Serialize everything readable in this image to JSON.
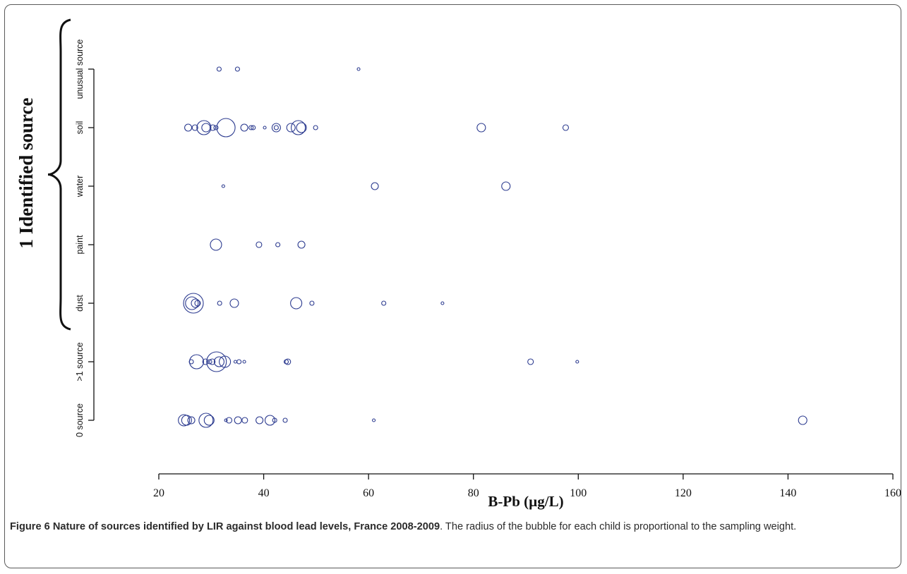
{
  "chart_data": {
    "type": "scatter",
    "title": "",
    "xlabel": "B-Pb (µg/L)",
    "ylabel": "",
    "xlim": [
      20,
      160
    ],
    "xticks": [
      20,
      40,
      60,
      80,
      100,
      120,
      140,
      160
    ],
    "categories": [
      "0 source",
      ">1 source",
      "dust",
      "paint",
      "water",
      "soil",
      "unusual source"
    ],
    "bracket_label": "1 Identified source",
    "bracket_covers": [
      "dust",
      "paint",
      "water",
      "soil",
      "unusual source"
    ],
    "marker": "open-circle",
    "marker_color": "#2b3a8f",
    "size_encoding": "radius proportional to sampling weight",
    "series": [
      {
        "category": "0 source",
        "points": [
          {
            "x": 24.8,
            "r": 8
          },
          {
            "x": 25.3,
            "r": 7
          },
          {
            "x": 26.2,
            "r": 5
          },
          {
            "x": 29.0,
            "r": 10
          },
          {
            "x": 29.6,
            "r": 7
          },
          {
            "x": 32.8,
            "r": 2
          },
          {
            "x": 33.4,
            "r": 4
          },
          {
            "x": 35.1,
            "r": 5
          },
          {
            "x": 36.4,
            "r": 4
          },
          {
            "x": 39.2,
            "r": 5
          },
          {
            "x": 41.2,
            "r": 7
          },
          {
            "x": 42.1,
            "r": 3
          },
          {
            "x": 44.1,
            "r": 3
          },
          {
            "x": 61.0,
            "r": 2
          },
          {
            "x": 142.8,
            "r": 6
          }
        ]
      },
      {
        "category": ">1 source",
        "points": [
          {
            "x": 26.2,
            "r": 3
          },
          {
            "x": 27.2,
            "r": 10
          },
          {
            "x": 28.9,
            "r": 4
          },
          {
            "x": 29.7,
            "r": 3
          },
          {
            "x": 30.2,
            "r": 4
          },
          {
            "x": 31.0,
            "r": 14
          },
          {
            "x": 31.5,
            "r": 7
          },
          {
            "x": 32.6,
            "r": 8
          },
          {
            "x": 34.6,
            "r": 2
          },
          {
            "x": 35.3,
            "r": 3
          },
          {
            "x": 36.3,
            "r": 2
          },
          {
            "x": 44.3,
            "r": 3
          },
          {
            "x": 44.6,
            "r": 4
          },
          {
            "x": 90.9,
            "r": 4
          },
          {
            "x": 99.8,
            "r": 2
          }
        ]
      },
      {
        "category": "dust",
        "points": [
          {
            "x": 26.6,
            "r": 14
          },
          {
            "x": 26.3,
            "r": 9
          },
          {
            "x": 27.0,
            "r": 6
          },
          {
            "x": 27.4,
            "r": 4
          },
          {
            "x": 31.6,
            "r": 3
          },
          {
            "x": 34.4,
            "r": 6
          },
          {
            "x": 46.2,
            "r": 8
          },
          {
            "x": 49.2,
            "r": 3
          },
          {
            "x": 62.9,
            "r": 3
          },
          {
            "x": 74.1,
            "r": 2
          }
        ]
      },
      {
        "category": "paint",
        "points": [
          {
            "x": 30.9,
            "r": 8
          },
          {
            "x": 39.1,
            "r": 4
          },
          {
            "x": 42.7,
            "r": 3
          },
          {
            "x": 47.2,
            "r": 5
          }
        ]
      },
      {
        "category": "water",
        "points": [
          {
            "x": 32.3,
            "r": 2
          },
          {
            "x": 61.2,
            "r": 5
          },
          {
            "x": 86.2,
            "r": 6
          }
        ]
      },
      {
        "category": "soil",
        "points": [
          {
            "x": 25.6,
            "r": 5
          },
          {
            "x": 26.9,
            "r": 4
          },
          {
            "x": 28.6,
            "r": 10
          },
          {
            "x": 29.0,
            "r": 6
          },
          {
            "x": 30.3,
            "r": 4
          },
          {
            "x": 30.9,
            "r": 3
          },
          {
            "x": 32.8,
            "r": 13
          },
          {
            "x": 36.3,
            "r": 5
          },
          {
            "x": 37.6,
            "r": 3
          },
          {
            "x": 38.0,
            "r": 3
          },
          {
            "x": 40.2,
            "r": 2
          },
          {
            "x": 42.4,
            "r": 6
          },
          {
            "x": 42.4,
            "r": 3
          },
          {
            "x": 45.2,
            "r": 6
          },
          {
            "x": 46.6,
            "r": 10
          },
          {
            "x": 47.2,
            "r": 7
          },
          {
            "x": 49.9,
            "r": 3
          },
          {
            "x": 81.5,
            "r": 6
          },
          {
            "x": 97.6,
            "r": 4
          }
        ]
      },
      {
        "category": "unusual source",
        "points": [
          {
            "x": 31.5,
            "r": 3
          },
          {
            "x": 35.0,
            "r": 3
          },
          {
            "x": 58.1,
            "r": 2
          }
        ]
      }
    ]
  },
  "caption": {
    "figure_title": "Figure 6 Nature of sources identified by LIR against blood lead levels, France 2008-2009",
    "text": ". The radius of the bubble for each child is proportional to the sampling weight."
  }
}
